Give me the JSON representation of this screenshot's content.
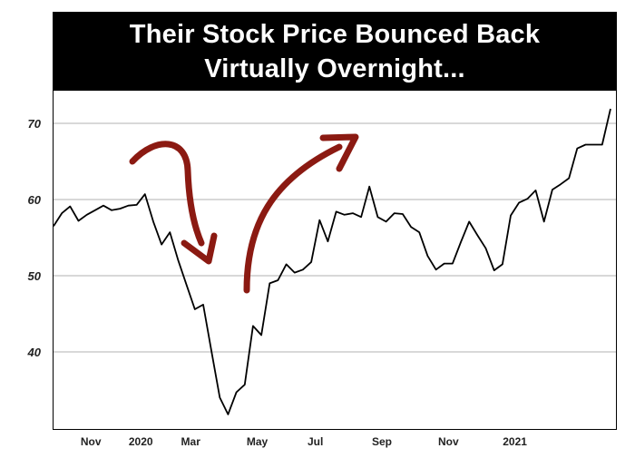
{
  "chart_data": {
    "type": "line",
    "title_lines": [
      "Their Stock Price Bounced Back",
      "Virtually Overnight..."
    ],
    "xlabel": "",
    "ylabel": "",
    "ylim": [
      31,
      73
    ],
    "y_ticks": [
      40,
      50,
      60,
      70
    ],
    "x_ticks": [
      {
        "label": "Nov",
        "index": 4.5
      },
      {
        "label": "2020",
        "index": 10.5
      },
      {
        "label": "Mar",
        "index": 16.5
      },
      {
        "label": "May",
        "index": 24.5
      },
      {
        "label": "Jul",
        "index": 31.5
      },
      {
        "label": "Sep",
        "index": 39.5
      },
      {
        "label": "Nov",
        "index": 47.5
      },
      {
        "label": "2021",
        "index": 55.5
      }
    ],
    "grid": true,
    "line_color": "#000000",
    "arrow_color": "#8b1a12",
    "series": [
      {
        "values": [
          56.5,
          58.2,
          59.1,
          57.2,
          58.0,
          58.6,
          59.2,
          58.6,
          58.8,
          59.2,
          59.3,
          60.7,
          57.1,
          54.1,
          55.7,
          52.0,
          48.8,
          45.6,
          46.2,
          40.1,
          34.0,
          31.8,
          34.7,
          35.7,
          43.4,
          42.2,
          49.0,
          49.4,
          51.5,
          50.4,
          50.8,
          51.8,
          57.3,
          54.5,
          58.4,
          58.0,
          58.2,
          57.7,
          61.7,
          57.7,
          57.1,
          58.2,
          58.1,
          56.4,
          55.7,
          52.6,
          50.8,
          51.6,
          51.6,
          54.4,
          57.1,
          55.3,
          53.6,
          50.7,
          51.5,
          57.9,
          59.6,
          60.1,
          61.2,
          57.1,
          61.3,
          62.0,
          62.8,
          66.7,
          67.2,
          67.2,
          67.2,
          71.9
        ]
      }
    ]
  }
}
